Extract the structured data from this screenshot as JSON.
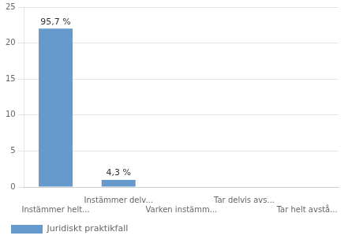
{
  "chart_data": {
    "type": "bar",
    "categories": [
      "Instämmer helt...",
      "Instämmer delv...",
      "Varken instämm...",
      "Tar delvis avs...",
      "Tar helt avstå..."
    ],
    "series": [
      {
        "name": "Juridiskt praktikfall",
        "color": "#6699cc",
        "values": [
          22,
          1,
          0,
          0,
          0
        ],
        "value_labels": [
          "95,7 %",
          "4,3 %",
          null,
          null,
          null
        ]
      }
    ],
    "ylim": [
      0,
      25
    ],
    "yticks": [
      0,
      5,
      10,
      15,
      20,
      25
    ],
    "grid": true,
    "legend": "bottom",
    "data_labels": true
  }
}
